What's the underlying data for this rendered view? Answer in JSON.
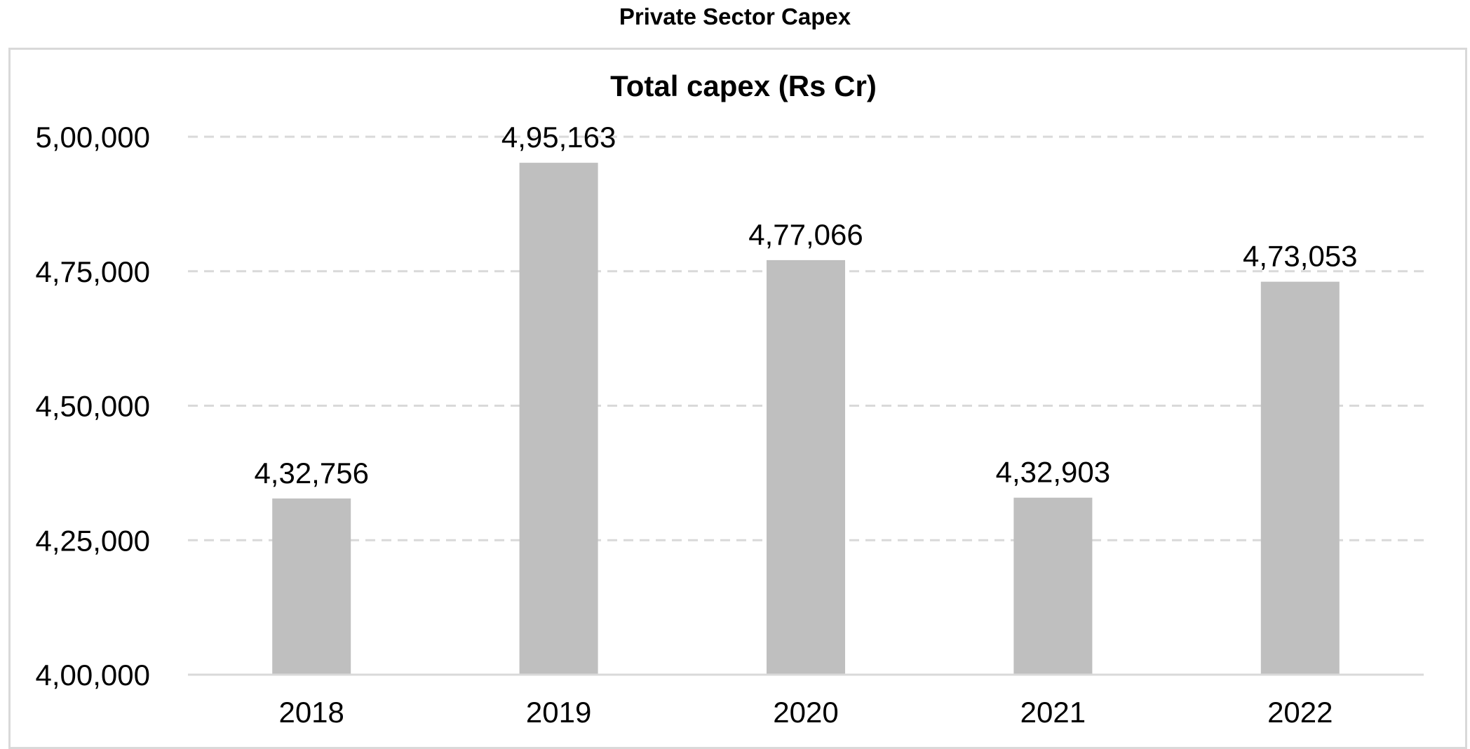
{
  "page_title": "Private Sector Capex",
  "chart_data": {
    "type": "bar",
    "title": "Total capex (Rs Cr)",
    "xlabel": "",
    "ylabel": "",
    "categories": [
      "2018",
      "2019",
      "2020",
      "2021",
      "2022"
    ],
    "values": [
      432756,
      495163,
      477066,
      432903,
      473053
    ],
    "value_labels": [
      "4,32,756",
      "4,95,163",
      "4,77,066",
      "4,32,903",
      "4,73,053"
    ],
    "ylim": [
      400000,
      500000
    ],
    "y_ticks": [
      400000,
      425000,
      450000,
      475000,
      500000
    ],
    "y_tick_labels": [
      "4,00,000",
      "4,25,000",
      "4,50,000",
      "4,75,000",
      "5,00,000"
    ],
    "grid": true,
    "grid_style": "dashed",
    "legend": "none",
    "bar_color": "#bfbfbf",
    "grid_color": "#d9d9d9",
    "axis_color": "#d9d9d9"
  }
}
